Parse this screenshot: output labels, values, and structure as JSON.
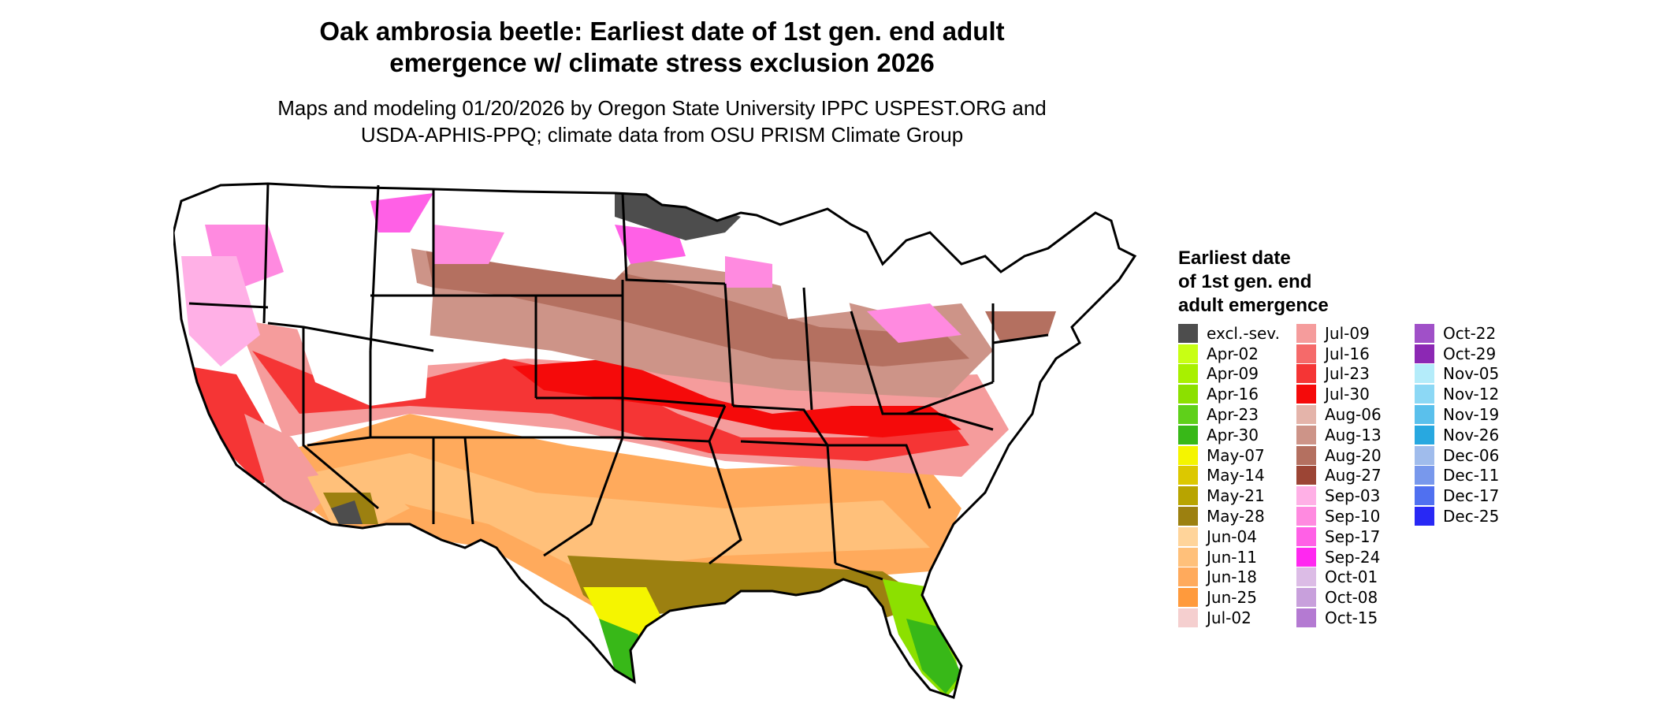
{
  "title": {
    "line1": "Oak ambrosia beetle: Earliest date of 1st gen. end adult",
    "line2": "emergence w/ climate stress exclusion 2026"
  },
  "subtitle": {
    "line1": "Maps and modeling 01/20/2026 by Oregon State University IPPC USPEST.ORG and",
    "line2": "USDA-APHIS-PPQ; climate data from OSU PRISM Climate Group"
  },
  "legend": {
    "title_lines": [
      "Earliest date",
      "of 1st gen. end",
      "adult emergence"
    ],
    "columns": [
      [
        {
          "label": "excl.-sev.",
          "color": "#4d4d4d"
        },
        {
          "label": "Apr-02",
          "color": "#c8ff14"
        },
        {
          "label": "Apr-09",
          "color": "#a8f000"
        },
        {
          "label": "Apr-16",
          "color": "#8ce000"
        },
        {
          "label": "Apr-23",
          "color": "#5fd01a"
        },
        {
          "label": "Apr-30",
          "color": "#38b818"
        },
        {
          "label": "May-07",
          "color": "#f5f500"
        },
        {
          "label": "May-14",
          "color": "#dcc800"
        },
        {
          "label": "May-21",
          "color": "#b8a400"
        },
        {
          "label": "May-28",
          "color": "#9c8010"
        },
        {
          "label": "Jun-04",
          "color": "#ffd49a"
        },
        {
          "label": "Jun-11",
          "color": "#ffc07a"
        },
        {
          "label": "Jun-18",
          "color": "#ffaa5c"
        },
        {
          "label": "Jun-25",
          "color": "#ff9a3c"
        },
        {
          "label": "Jul-02",
          "color": "#f5cfcf"
        }
      ],
      [
        {
          "label": "Jul-09",
          "color": "#f59c9c"
        },
        {
          "label": "Jul-16",
          "color": "#f56a6a"
        },
        {
          "label": "Jul-23",
          "color": "#f53535"
        },
        {
          "label": "Jul-30",
          "color": "#f50a0a"
        },
        {
          "label": "Aug-06",
          "color": "#e4b4aa"
        },
        {
          "label": "Aug-13",
          "color": "#cd9488"
        },
        {
          "label": "Aug-20",
          "color": "#b47060"
        },
        {
          "label": "Aug-27",
          "color": "#9c4535"
        },
        {
          "label": "Sep-03",
          "color": "#ffb0e6"
        },
        {
          "label": "Sep-10",
          "color": "#ff8ae0"
        },
        {
          "label": "Sep-17",
          "color": "#ff60e6"
        },
        {
          "label": "Sep-24",
          "color": "#ff28f0"
        },
        {
          "label": "Oct-01",
          "color": "#dcbce6"
        },
        {
          "label": "Oct-08",
          "color": "#c8a0dc"
        },
        {
          "label": "Oct-15",
          "color": "#b47ad2"
        }
      ],
      [
        {
          "label": "Oct-22",
          "color": "#a050c8"
        },
        {
          "label": "Oct-29",
          "color": "#8c28b4"
        },
        {
          "label": "Nov-05",
          "color": "#b4ecfa"
        },
        {
          "label": "Nov-12",
          "color": "#8cd8f5"
        },
        {
          "label": "Nov-19",
          "color": "#5ac0ec"
        },
        {
          "label": "Nov-26",
          "color": "#28a8e0"
        },
        {
          "label": "Dec-06",
          "color": "#a0bcec"
        },
        {
          "label": "Dec-11",
          "color": "#7898ec"
        },
        {
          "label": "Dec-17",
          "color": "#5070f0"
        },
        {
          "label": "Dec-25",
          "color": "#2828f5"
        }
      ]
    ]
  }
}
